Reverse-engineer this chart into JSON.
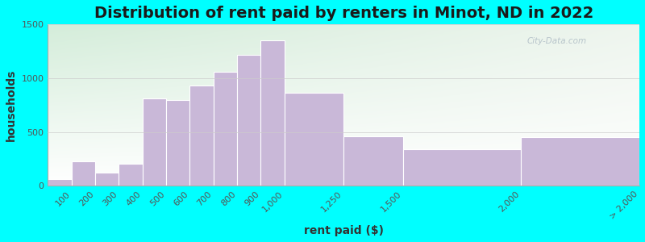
{
  "title": "Distribution of rent paid by renters in Minot, ND in 2022",
  "xlabel": "rent paid ($)",
  "ylabel": "households",
  "bar_labels": [
    "100",
    "200",
    "300",
    "400",
    "500",
    "600",
    "700",
    "800",
    "900",
    "1,000",
    "1,250",
    "1,500",
    "2,000",
    "> 2,000"
  ],
  "bar_values": [
    65,
    225,
    120,
    205,
    810,
    795,
    930,
    1060,
    1215,
    1355,
    865,
    460,
    340,
    450
  ],
  "bar_left_edges": [
    0,
    100,
    200,
    300,
    400,
    500,
    600,
    700,
    800,
    900,
    1000,
    1250,
    1500,
    2000
  ],
  "bar_right_edges": [
    100,
    200,
    300,
    400,
    500,
    600,
    700,
    800,
    900,
    1000,
    1250,
    1500,
    2000,
    2500
  ],
  "x_tick_positions": [
    100,
    200,
    300,
    400,
    500,
    600,
    700,
    800,
    900,
    1000,
    1250,
    1500,
    2000,
    2500
  ],
  "bar_color": "#c9b8d8",
  "bar_edge_color": "#ffffff",
  "outer_bg": "#00ffff",
  "ylim": [
    0,
    1500
  ],
  "xlim": [
    0,
    2500
  ],
  "yticks": [
    0,
    500,
    1000,
    1500
  ],
  "title_fontsize": 14,
  "axis_label_fontsize": 10,
  "tick_fontsize": 8,
  "watermark_text": "City-Data.com"
}
